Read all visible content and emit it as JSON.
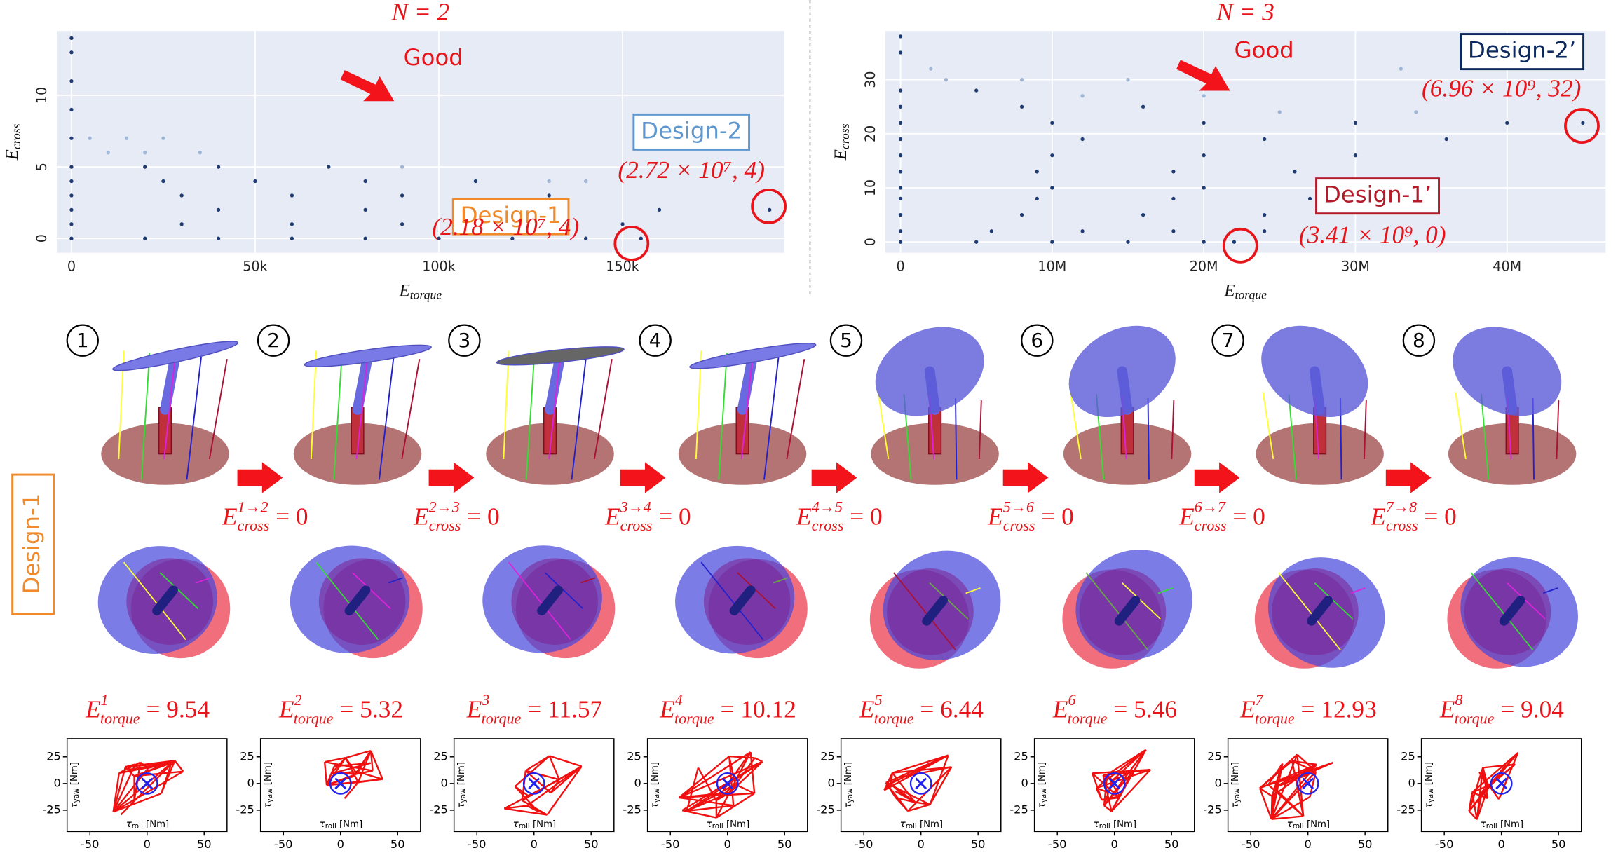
{
  "chart_data": [
    {
      "type": "scatter",
      "title": "N = 2",
      "xlabel": {
        "main": "E",
        "sub": "torque"
      },
      "ylabel": {
        "main": "E",
        "sub": "cross"
      },
      "xlim": [
        -4000,
        194000
      ],
      "ylim": [
        -1,
        14.5
      ],
      "xticks": [
        0,
        {
          "value": 50000,
          "label": "50k"
        },
        {
          "value": 100000,
          "label": "100k"
        },
        {
          "value": 150000,
          "label": "150k"
        }
      ],
      "yticks": [
        0,
        5,
        10
      ],
      "series": [
        {
          "color": "#1f3b73",
          "x": [
            0,
            20000,
            40000,
            60000,
            80000,
            100000,
            120000,
            140000,
            155000,
            0,
            30000,
            60000,
            90000,
            120000,
            150000,
            0,
            40000,
            80000,
            120000,
            160000,
            190000,
            0,
            30000,
            60000,
            90000,
            130000,
            0,
            25000,
            50000,
            80000,
            110000,
            0,
            20000,
            40000,
            70000,
            0,
            0,
            0,
            0,
            0
          ],
          "values": [
            0,
            0,
            0,
            0,
            0,
            0,
            0,
            0,
            0,
            1,
            1,
            1,
            1,
            1,
            1,
            2,
            2,
            2,
            2,
            2,
            2,
            3,
            3,
            3,
            3,
            3,
            4,
            4,
            4,
            4,
            4,
            5,
            5,
            5,
            5,
            7,
            9,
            11,
            13,
            14
          ]
        },
        {
          "color": "#9fb6d6",
          "x": [
            10000,
            20000,
            35000,
            5000,
            15000,
            25000,
            130000,
            140000,
            90000
          ],
          "values": [
            6,
            6,
            6,
            7,
            7,
            7,
            4,
            4,
            5
          ]
        }
      ],
      "annotations": [
        "Good",
        "Design-2",
        "Design-1",
        "(2.72 × 10⁷, 4)",
        "(2.18 × 10⁷, 4)"
      ]
    },
    {
      "type": "scatter",
      "title": "N = 3",
      "xlabel": {
        "main": "E",
        "sub": "torque"
      },
      "ylabel": {
        "main": "E",
        "sub": "cross"
      },
      "xlim": [
        -1000000,
        46500000
      ],
      "ylim": [
        -2,
        39
      ],
      "xticks": [
        0,
        {
          "value": 10000000,
          "label": "10M"
        },
        {
          "value": 20000000,
          "label": "20M"
        },
        {
          "value": 30000000,
          "label": "30M"
        },
        {
          "value": 40000000,
          "label": "40M"
        }
      ],
      "yticks": [
        0,
        10,
        20,
        30
      ],
      "series": [
        {
          "color": "#1f3b73",
          "x": [
            0,
            5000000,
            10000000,
            15000000,
            20000000,
            22000000,
            0,
            6000000,
            12000000,
            18000000,
            24000000,
            0,
            8000000,
            16000000,
            24000000,
            0,
            9000000,
            18000000,
            27000000,
            0,
            10000000,
            20000000,
            28000000,
            0,
            9000000,
            18000000,
            26000000,
            0,
            10000000,
            20000000,
            30000000,
            0,
            12000000,
            24000000,
            36000000,
            0,
            10000000,
            20000000,
            30000000,
            40000000,
            45000000,
            0,
            8000000,
            16000000,
            0,
            5000000,
            0,
            0
          ],
          "values": [
            0,
            0,
            0,
            0,
            0,
            0,
            2,
            2,
            2,
            2,
            2,
            5,
            5,
            5,
            5,
            8,
            8,
            8,
            8,
            10,
            10,
            10,
            10,
            13,
            13,
            13,
            13,
            16,
            16,
            16,
            16,
            19,
            19,
            19,
            19,
            22,
            22,
            22,
            22,
            22,
            22,
            25,
            25,
            25,
            28,
            28,
            35,
            38
          ]
        },
        {
          "color": "#9fb6d6",
          "x": [
            3000000,
            8000000,
            15000000,
            2000000,
            33000000,
            12000000,
            20000000,
            25000000,
            34000000
          ],
          "values": [
            30,
            30,
            30,
            32,
            32,
            27,
            27,
            24,
            24
          ]
        }
      ],
      "annotations": [
        "Good",
        "Design-2’",
        "Design-1’",
        "(6.96 × 10⁹, 32)",
        "(3.41 × 10⁹, 0)"
      ]
    }
  ],
  "design_label": "Design-1",
  "steps": [
    "①",
    "②",
    "③",
    "④",
    "⑤",
    "⑥",
    "⑦",
    "⑧"
  ],
  "transitions": [
    {
      "sup": "1→2",
      "sub": "cross",
      "main": "E",
      "value": 0
    },
    {
      "sup": "2→3",
      "sub": "cross",
      "main": "E",
      "value": 0
    },
    {
      "sup": "3→4",
      "sub": "cross",
      "main": "E",
      "value": 0
    },
    {
      "sup": "4→5",
      "sub": "cross",
      "main": "E",
      "value": 0
    },
    {
      "sup": "5→6",
      "sub": "cross",
      "main": "E",
      "value": 0
    },
    {
      "sup": "6→7",
      "sub": "cross",
      "main": "E",
      "value": 0
    },
    {
      "sup": "7→8",
      "sub": "cross",
      "main": "E",
      "value": 0
    }
  ],
  "torques": [
    {
      "sup": "1",
      "sub": "torque",
      "main": "E",
      "value": 9.54
    },
    {
      "sup": "2",
      "sub": "torque",
      "main": "E",
      "value": 5.32
    },
    {
      "sup": "3",
      "sub": "torque",
      "main": "E",
      "value": 11.57
    },
    {
      "sup": "4",
      "sub": "torque",
      "main": "E",
      "value": 10.12
    },
    {
      "sup": "5",
      "sub": "torque",
      "main": "E",
      "value": 6.44
    },
    {
      "sup": "6",
      "sub": "torque",
      "main": "E",
      "value": 5.46
    },
    {
      "sup": "7",
      "sub": "torque",
      "main": "E",
      "value": 12.93
    },
    {
      "sup": "8",
      "sub": "torque",
      "main": "E",
      "value": 9.04
    }
  ],
  "torque_plot": {
    "xlim": [
      -70,
      70
    ],
    "ylim": [
      -45,
      42
    ],
    "xticks": [
      -50,
      0,
      50
    ],
    "yticks": [
      -25,
      0,
      25
    ],
    "xlabel": {
      "main": "τ",
      "sub": "roll",
      "unit": "[Nm]"
    },
    "ylabel": {
      "main": "τ",
      "sub": "yaw",
      "unit": "[Nm]"
    }
  }
}
